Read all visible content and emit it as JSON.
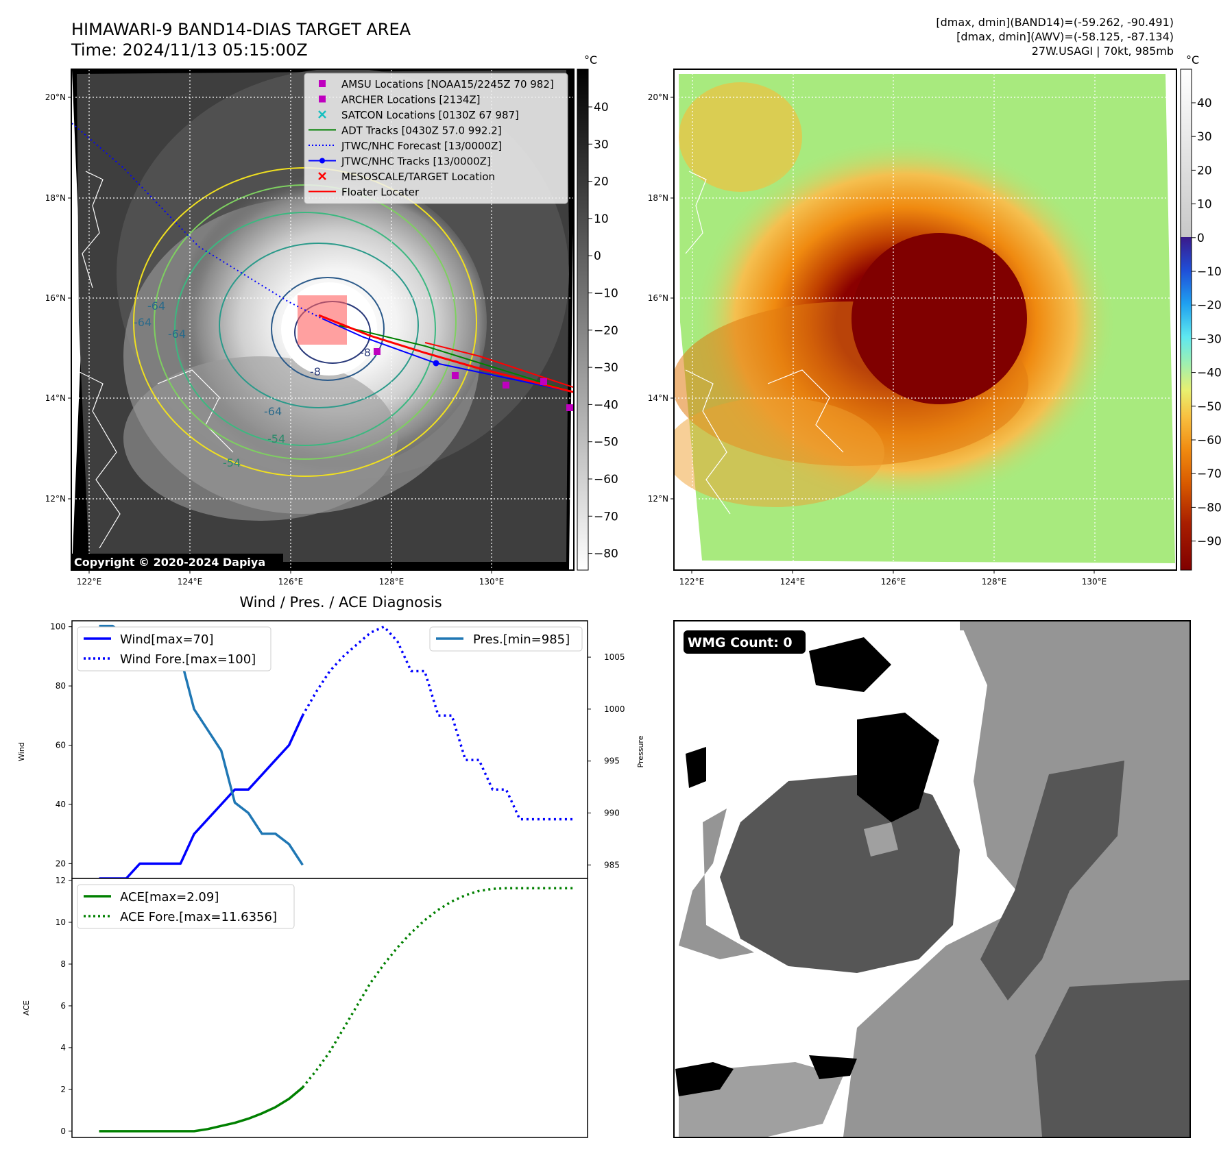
{
  "header": {
    "title_line1": "HIMAWARI-9 BAND14-DIAS TARGET AREA",
    "title_line2": "Time: 2024/11/13 05:15:00Z",
    "info_line1": "[dmax, dmin](BAND14)=(-59.262, -90.491)",
    "info_line2": "[dmax, dmin](AWV)=(-58.125, -87.134)",
    "info_line3": "27W.USAGI | 70kt, 985mb"
  },
  "map_axes": {
    "lon_ticks": [
      "122°E",
      "124°E",
      "126°E",
      "128°E",
      "130°E"
    ],
    "lat_ticks": [
      "20°N",
      "18°N",
      "16°N",
      "14°N",
      "12°N"
    ]
  },
  "ir_panel": {
    "colorbar_unit": "°C",
    "colorbar_ticks": [
      "40",
      "30",
      "20",
      "10",
      "0",
      "−10",
      "−20",
      "−30",
      "−40",
      "−50",
      "−60",
      "−70",
      "−80"
    ],
    "copyright": "Copyright © 2020-2024 Dapiya",
    "contour_labels": [
      "-64",
      "-64",
      "-64",
      "-64",
      "-54",
      "-54",
      "-8",
      "-8"
    ],
    "legend": [
      {
        "label": "AMSU Locations [NOAA15/2245Z 70 982]",
        "color": "#bf00bf",
        "marker": "square"
      },
      {
        "label": "ARCHER Locations [2134Z]",
        "color": "#bf00bf",
        "marker": "square"
      },
      {
        "label": "SATCON Locations [0130Z 67 987]",
        "color": "#17bfbf",
        "marker": "x"
      },
      {
        "label": "ADT Tracks [0430Z 57.0 992.2]",
        "color": "#008000",
        "marker": "line"
      },
      {
        "label": "JTWC/NHC Forecast [13/0000Z]",
        "color": "#0000ff",
        "marker": "dotted"
      },
      {
        "label": "JTWC/NHC Tracks [13/0000Z]",
        "color": "#0000ff",
        "marker": "line-dot"
      },
      {
        "label": "MESOSCALE/TARGET Location",
        "color": "#ff0000",
        "marker": "x"
      },
      {
        "label": "Floater Locater",
        "color": "#ff0000",
        "marker": "line"
      }
    ]
  },
  "enhanced_panel": {
    "colorbar_unit": "°C",
    "colorbar_ticks": [
      "40",
      "30",
      "20",
      "10",
      "0",
      "−10",
      "−20",
      "−30",
      "−40",
      "−50",
      "−60",
      "−70",
      "−80",
      "−90"
    ]
  },
  "wmg_panel": {
    "badge": "WMG Count: 0"
  },
  "chart_data": [
    {
      "type": "line",
      "title": "Wind / Pres. / ACE Diagnosis",
      "ylabel": "Wind",
      "ylabel_right": "Pressure",
      "ylim": [
        15,
        102
      ],
      "y_ticks": [
        20,
        40,
        60,
        80,
        100
      ],
      "ylim_right": [
        983.7,
        1008.5
      ],
      "y_ticks_right": [
        985,
        990,
        995,
        1000,
        1005
      ],
      "xlim": [
        -2,
        36
      ],
      "series": [
        {
          "name": "Wind[max=70]",
          "axis": "left",
          "color": "#0000ff",
          "style": "solid",
          "x": [
            0,
            1,
            2,
            3,
            4,
            5,
            6,
            7,
            8,
            9,
            10,
            11,
            12,
            13,
            14,
            15
          ],
          "values": [
            15,
            15,
            15,
            20,
            20,
            20,
            20,
            30,
            35,
            40,
            45,
            45,
            50,
            55,
            60,
            70
          ]
        },
        {
          "name": "Wind Fore.[max=100]",
          "axis": "left",
          "color": "#0000ff",
          "style": "dotted",
          "x": [
            15,
            16,
            17,
            18,
            19,
            20,
            21,
            22,
            23,
            24,
            25,
            26,
            27,
            28,
            29,
            30,
            31,
            32,
            33,
            34,
            35
          ],
          "values": [
            70,
            78,
            85,
            90,
            94,
            98,
            100,
            95,
            85,
            85,
            70,
            70,
            55,
            55,
            45,
            45,
            35,
            35,
            35,
            35,
            35
          ]
        },
        {
          "name": "Pres.[min=985]",
          "axis": "right",
          "color": "#1f77b4",
          "style": "solid",
          "x": [
            0,
            1,
            2,
            3,
            4,
            5,
            6,
            7,
            8,
            9,
            10,
            11,
            12,
            13,
            14,
            15
          ],
          "values": [
            1008,
            1008,
            1007,
            1007,
            1006,
            1006,
            1005,
            1000,
            998,
            996,
            991,
            990,
            988,
            988,
            987,
            985
          ]
        }
      ]
    },
    {
      "type": "line",
      "ylabel": "ACE",
      "ylim": [
        -0.3,
        12.1
      ],
      "y_ticks": [
        0,
        2,
        4,
        6,
        8,
        10,
        12
      ],
      "xlim": [
        -2,
        36
      ],
      "series": [
        {
          "name": "ACE[max=2.09]",
          "color": "#008000",
          "style": "solid",
          "x": [
            0,
            1,
            2,
            3,
            4,
            5,
            6,
            7,
            8,
            9,
            10,
            11,
            12,
            13,
            14,
            15
          ],
          "values": [
            0,
            0,
            0,
            0,
            0,
            0,
            0,
            0,
            0.1,
            0.25,
            0.4,
            0.6,
            0.85,
            1.15,
            1.55,
            2.09
          ]
        },
        {
          "name": "ACE Fore.[max=11.6356]",
          "color": "#008000",
          "style": "dotted",
          "x": [
            15,
            16,
            17,
            18,
            19,
            20,
            21,
            22,
            23,
            24,
            25,
            26,
            27,
            28,
            29,
            30,
            31,
            32,
            33,
            34,
            35
          ],
          "values": [
            2.09,
            2.9,
            3.8,
            4.9,
            6.0,
            7.1,
            8.0,
            8.8,
            9.5,
            10.1,
            10.6,
            11.0,
            11.3,
            11.5,
            11.6,
            11.63,
            11.6356,
            11.6356,
            11.6356,
            11.6356,
            11.6356
          ]
        }
      ]
    }
  ]
}
